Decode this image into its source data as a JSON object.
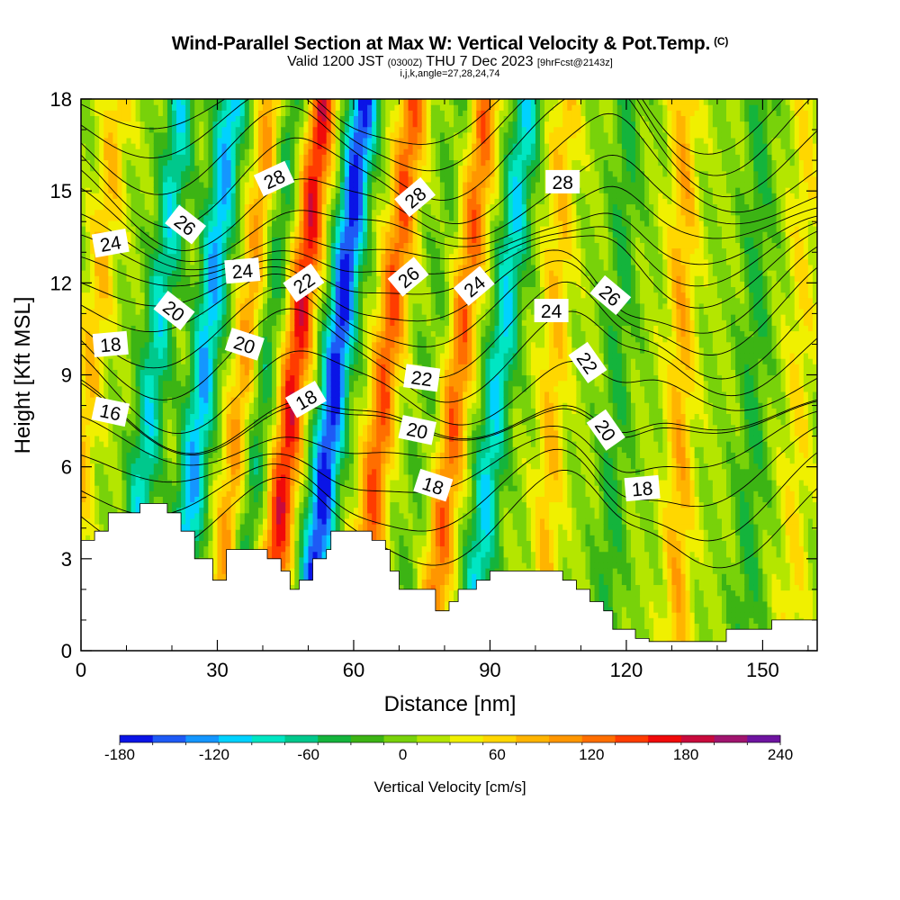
{
  "title": {
    "main": "Wind-Parallel Section at Max W: Vertical Velocity & Pot.Temp.",
    "mark": "(C)",
    "valid_a": "Valid 1200 JST",
    "valid_utc": "(0300Z)",
    "valid_b": "THU 7 Dec 2023",
    "fcst": "[9hrFcst@2143z]",
    "indices": "i,j,k,angle=27,28,24,74"
  },
  "chart_data": {
    "type": "heatmap",
    "xlabel": "Distance [nm]",
    "ylabel": "Height [Kft MSL]",
    "xlim": [
      0,
      162
    ],
    "ylim": [
      0,
      18
    ],
    "x_ticks": [
      0,
      30,
      60,
      90,
      120,
      150
    ],
    "y_ticks": [
      0,
      3,
      6,
      9,
      12,
      15,
      18
    ],
    "colorbar": {
      "title": "Vertical Velocity [cm/s]",
      "min": -180,
      "max": 240,
      "step": 20,
      "tick_values": [
        -180,
        -120,
        -60,
        0,
        60,
        120,
        180,
        240
      ],
      "colors": [
        "#0a14e6",
        "#1e5af5",
        "#1496ff",
        "#00d2ff",
        "#00e6c3",
        "#00c88c",
        "#14b43c",
        "#3cb414",
        "#78d20a",
        "#b4e600",
        "#f0f000",
        "#ffd700",
        "#ffb400",
        "#ff9600",
        "#ff6e00",
        "#ff3c00",
        "#f00a0a",
        "#c80a3c",
        "#a0146e",
        "#6e14a0"
      ]
    },
    "vertical_velocity_bands_estimated": [
      {
        "center_x": 2,
        "slope_nm_per_kft": 0.7,
        "peak_w": 60
      },
      {
        "center_x": 16,
        "slope_nm_per_kft": 0.7,
        "peak_w": -90
      },
      {
        "center_x": 27,
        "slope_nm_per_kft": 0.7,
        "peak_w": -120
      },
      {
        "center_x": 36,
        "slope_nm_per_kft": 0.7,
        "peak_w": 90
      },
      {
        "center_x": 40,
        "slope_nm_per_kft": 0.7,
        "peak_w": -60
      },
      {
        "center_x": 47,
        "slope_nm_per_kft": 0.7,
        "peak_w": 150
      },
      {
        "center_x": 56,
        "slope_nm_per_kft": 0.7,
        "peak_w": -170
      },
      {
        "center_x": 67,
        "slope_nm_per_kft": 0.7,
        "peak_w": 120
      },
      {
        "center_x": 77,
        "slope_nm_per_kft": 0.7,
        "peak_w": -20
      },
      {
        "center_x": 83,
        "slope_nm_per_kft": 0.7,
        "peak_w": 110
      },
      {
        "center_x": 92,
        "slope_nm_per_kft": 0.7,
        "peak_w": -100
      },
      {
        "center_x": 104,
        "slope_nm_per_kft": 0.3,
        "peak_w": 60
      },
      {
        "center_x": 118,
        "slope_nm_per_kft": 0.3,
        "peak_w": -40
      },
      {
        "center_x": 132,
        "slope_nm_per_kft": 0.1,
        "peak_w": 70
      },
      {
        "center_x": 148,
        "slope_nm_per_kft": 0.2,
        "peak_w": -40
      },
      {
        "center_x": 158,
        "slope_nm_per_kft": 0.2,
        "peak_w": 40
      }
    ],
    "terrain_kft": [
      [
        0,
        3.6
      ],
      [
        3,
        3.6
      ],
      [
        3,
        3.9
      ],
      [
        6,
        3.9
      ],
      [
        6,
        4.5
      ],
      [
        13,
        4.5
      ],
      [
        13,
        4.8
      ],
      [
        19,
        4.8
      ],
      [
        19,
        4.5
      ],
      [
        22,
        4.5
      ],
      [
        22,
        3.9
      ],
      [
        25,
        3.9
      ],
      [
        25,
        3.0
      ],
      [
        29,
        3.0
      ],
      [
        29,
        2.3
      ],
      [
        32,
        2.3
      ],
      [
        32,
        3.3
      ],
      [
        41,
        3.3
      ],
      [
        41,
        3.0
      ],
      [
        44,
        3.0
      ],
      [
        44,
        2.6
      ],
      [
        46,
        2.6
      ],
      [
        46,
        2.0
      ],
      [
        48,
        2.0
      ],
      [
        48,
        2.3
      ],
      [
        51,
        2.3
      ],
      [
        51,
        3.0
      ],
      [
        54,
        3.0
      ],
      [
        54,
        3.3
      ],
      [
        55,
        3.3
      ],
      [
        55,
        3.9
      ],
      [
        64,
        3.9
      ],
      [
        64,
        3.6
      ],
      [
        67,
        3.6
      ],
      [
        67,
        3.3
      ],
      [
        68,
        3.3
      ],
      [
        68,
        2.6
      ],
      [
        70,
        2.6
      ],
      [
        70,
        2.0
      ],
      [
        78,
        2.0
      ],
      [
        78,
        1.3
      ],
      [
        81,
        1.3
      ],
      [
        81,
        1.6
      ],
      [
        83,
        1.6
      ],
      [
        83,
        2.0
      ],
      [
        87,
        2.0
      ],
      [
        87,
        2.3
      ],
      [
        90,
        2.3
      ],
      [
        90,
        2.6
      ],
      [
        106,
        2.6
      ],
      [
        106,
        2.3
      ],
      [
        109,
        2.3
      ],
      [
        109,
        2.0
      ],
      [
        112,
        2.0
      ],
      [
        112,
        1.6
      ],
      [
        115,
        1.6
      ],
      [
        115,
        1.3
      ],
      [
        117,
        1.3
      ],
      [
        117,
        0.7
      ],
      [
        122,
        0.7
      ],
      [
        122,
        0.4
      ],
      [
        125,
        0.4
      ],
      [
        125,
        0.3
      ],
      [
        142,
        0.3
      ],
      [
        142,
        0.7
      ],
      [
        152,
        0.7
      ],
      [
        152,
        1.0
      ],
      [
        162,
        1.0
      ]
    ],
    "theta_contours_estimated": [
      {
        "label": "16",
        "y_base_kft": 7.7
      },
      {
        "label": "18",
        "y_base_kft": 9.8
      },
      {
        "label": "20",
        "y_base_kft": 11.3
      },
      {
        "label": "22",
        "y_base_kft": 12.4
      },
      {
        "label": "24",
        "y_base_kft": 13.3
      },
      {
        "label": "26",
        "y_base_kft": 14.6
      },
      {
        "label": "28",
        "y_base_kft": 16.4
      }
    ],
    "contour_labels": [
      {
        "text": "16",
        "x": 6.5,
        "y": 7.8,
        "angle": 12
      },
      {
        "text": "18",
        "x": 6.5,
        "y": 10.0,
        "angle": -5
      },
      {
        "text": "20",
        "x": 20.5,
        "y": 11.1,
        "angle": 38
      },
      {
        "text": "24",
        "x": 6.5,
        "y": 13.3,
        "angle": -10
      },
      {
        "text": "26",
        "x": 23,
        "y": 13.9,
        "angle": 38
      },
      {
        "text": "20",
        "x": 36,
        "y": 10.0,
        "angle": 18
      },
      {
        "text": "24",
        "x": 35.5,
        "y": 12.4,
        "angle": -5
      },
      {
        "text": "28",
        "x": 42.5,
        "y": 15.4,
        "angle": -25
      },
      {
        "text": "18",
        "x": 49.5,
        "y": 8.2,
        "angle": -30
      },
      {
        "text": "22",
        "x": 49,
        "y": 12.0,
        "angle": -35
      },
      {
        "text": "28",
        "x": 73.5,
        "y": 14.8,
        "angle": -40
      },
      {
        "text": "26",
        "x": 72,
        "y": 12.2,
        "angle": -40
      },
      {
        "text": "24",
        "x": 86.5,
        "y": 11.9,
        "angle": -40
      },
      {
        "text": "22",
        "x": 75,
        "y": 8.9,
        "angle": 8
      },
      {
        "text": "20",
        "x": 74,
        "y": 7.2,
        "angle": 12
      },
      {
        "text": "18",
        "x": 77.5,
        "y": 5.4,
        "angle": 18
      },
      {
        "text": "28",
        "x": 106,
        "y": 15.3,
        "angle": 0
      },
      {
        "text": "24",
        "x": 103.5,
        "y": 11.1,
        "angle": 0
      },
      {
        "text": "26",
        "x": 116.5,
        "y": 11.6,
        "angle": 40
      },
      {
        "text": "22",
        "x": 111.5,
        "y": 9.4,
        "angle": 55
      },
      {
        "text": "20",
        "x": 115.5,
        "y": 7.2,
        "angle": 55
      },
      {
        "text": "18",
        "x": 123.5,
        "y": 5.3,
        "angle": -5
      }
    ]
  }
}
